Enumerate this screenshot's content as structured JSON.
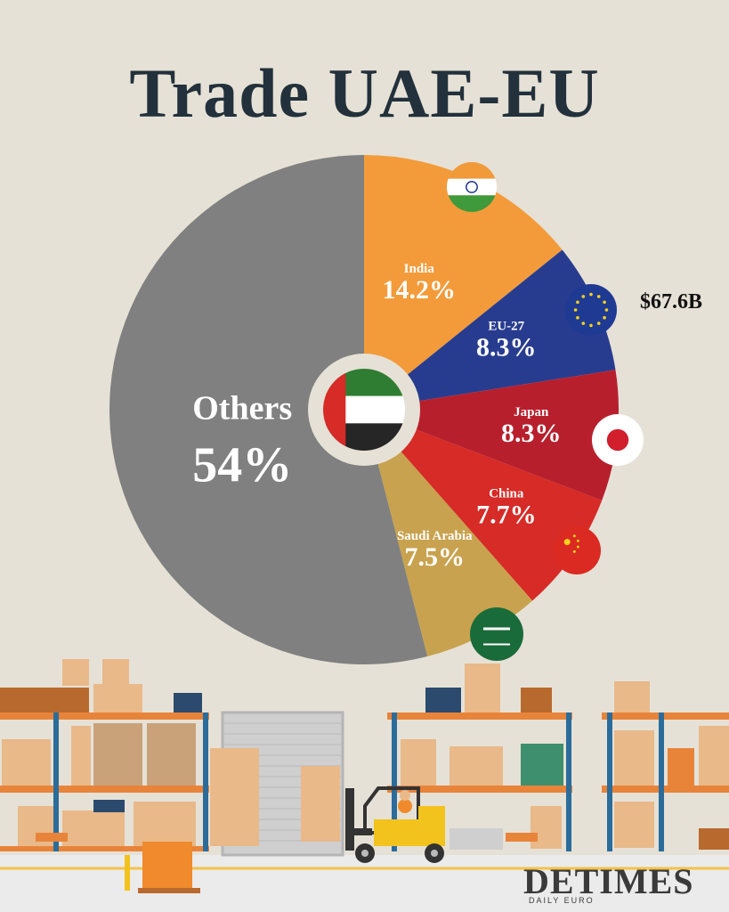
{
  "title": "Trade UAE-EU",
  "total_label": "$67.6B",
  "chart_data": {
    "type": "pie",
    "title": "Trade UAE-EU",
    "total": "$67.6B",
    "slices": [
      {
        "label": "India",
        "value": 14.2,
        "display": "14.2%",
        "color": "#f39b3a",
        "flag": "india-flag-icon"
      },
      {
        "label": "EU-27",
        "value": 8.3,
        "display": "8.3%",
        "color": "#283c8f",
        "flag": "eu-flag-icon"
      },
      {
        "label": "Japan",
        "value": 8.3,
        "display": "8.3%",
        "color": "#b81f2d",
        "flag": "japan-flag-icon"
      },
      {
        "label": "China",
        "value": 7.7,
        "display": "7.7%",
        "color": "#d62b27",
        "flag": "china-flag-icon"
      },
      {
        "label": "Saudi Arabia",
        "value": 7.5,
        "display": "7.5%",
        "color": "#c8a24f",
        "flag": "saudi-flag-icon"
      },
      {
        "label": "Others",
        "value": 54,
        "display": "54%",
        "color": "#7f807f",
        "flag": ""
      }
    ],
    "center_icon": "uae-flag-icon"
  },
  "logo": {
    "main": "DETIMES",
    "sub": "DAILY EURO"
  }
}
